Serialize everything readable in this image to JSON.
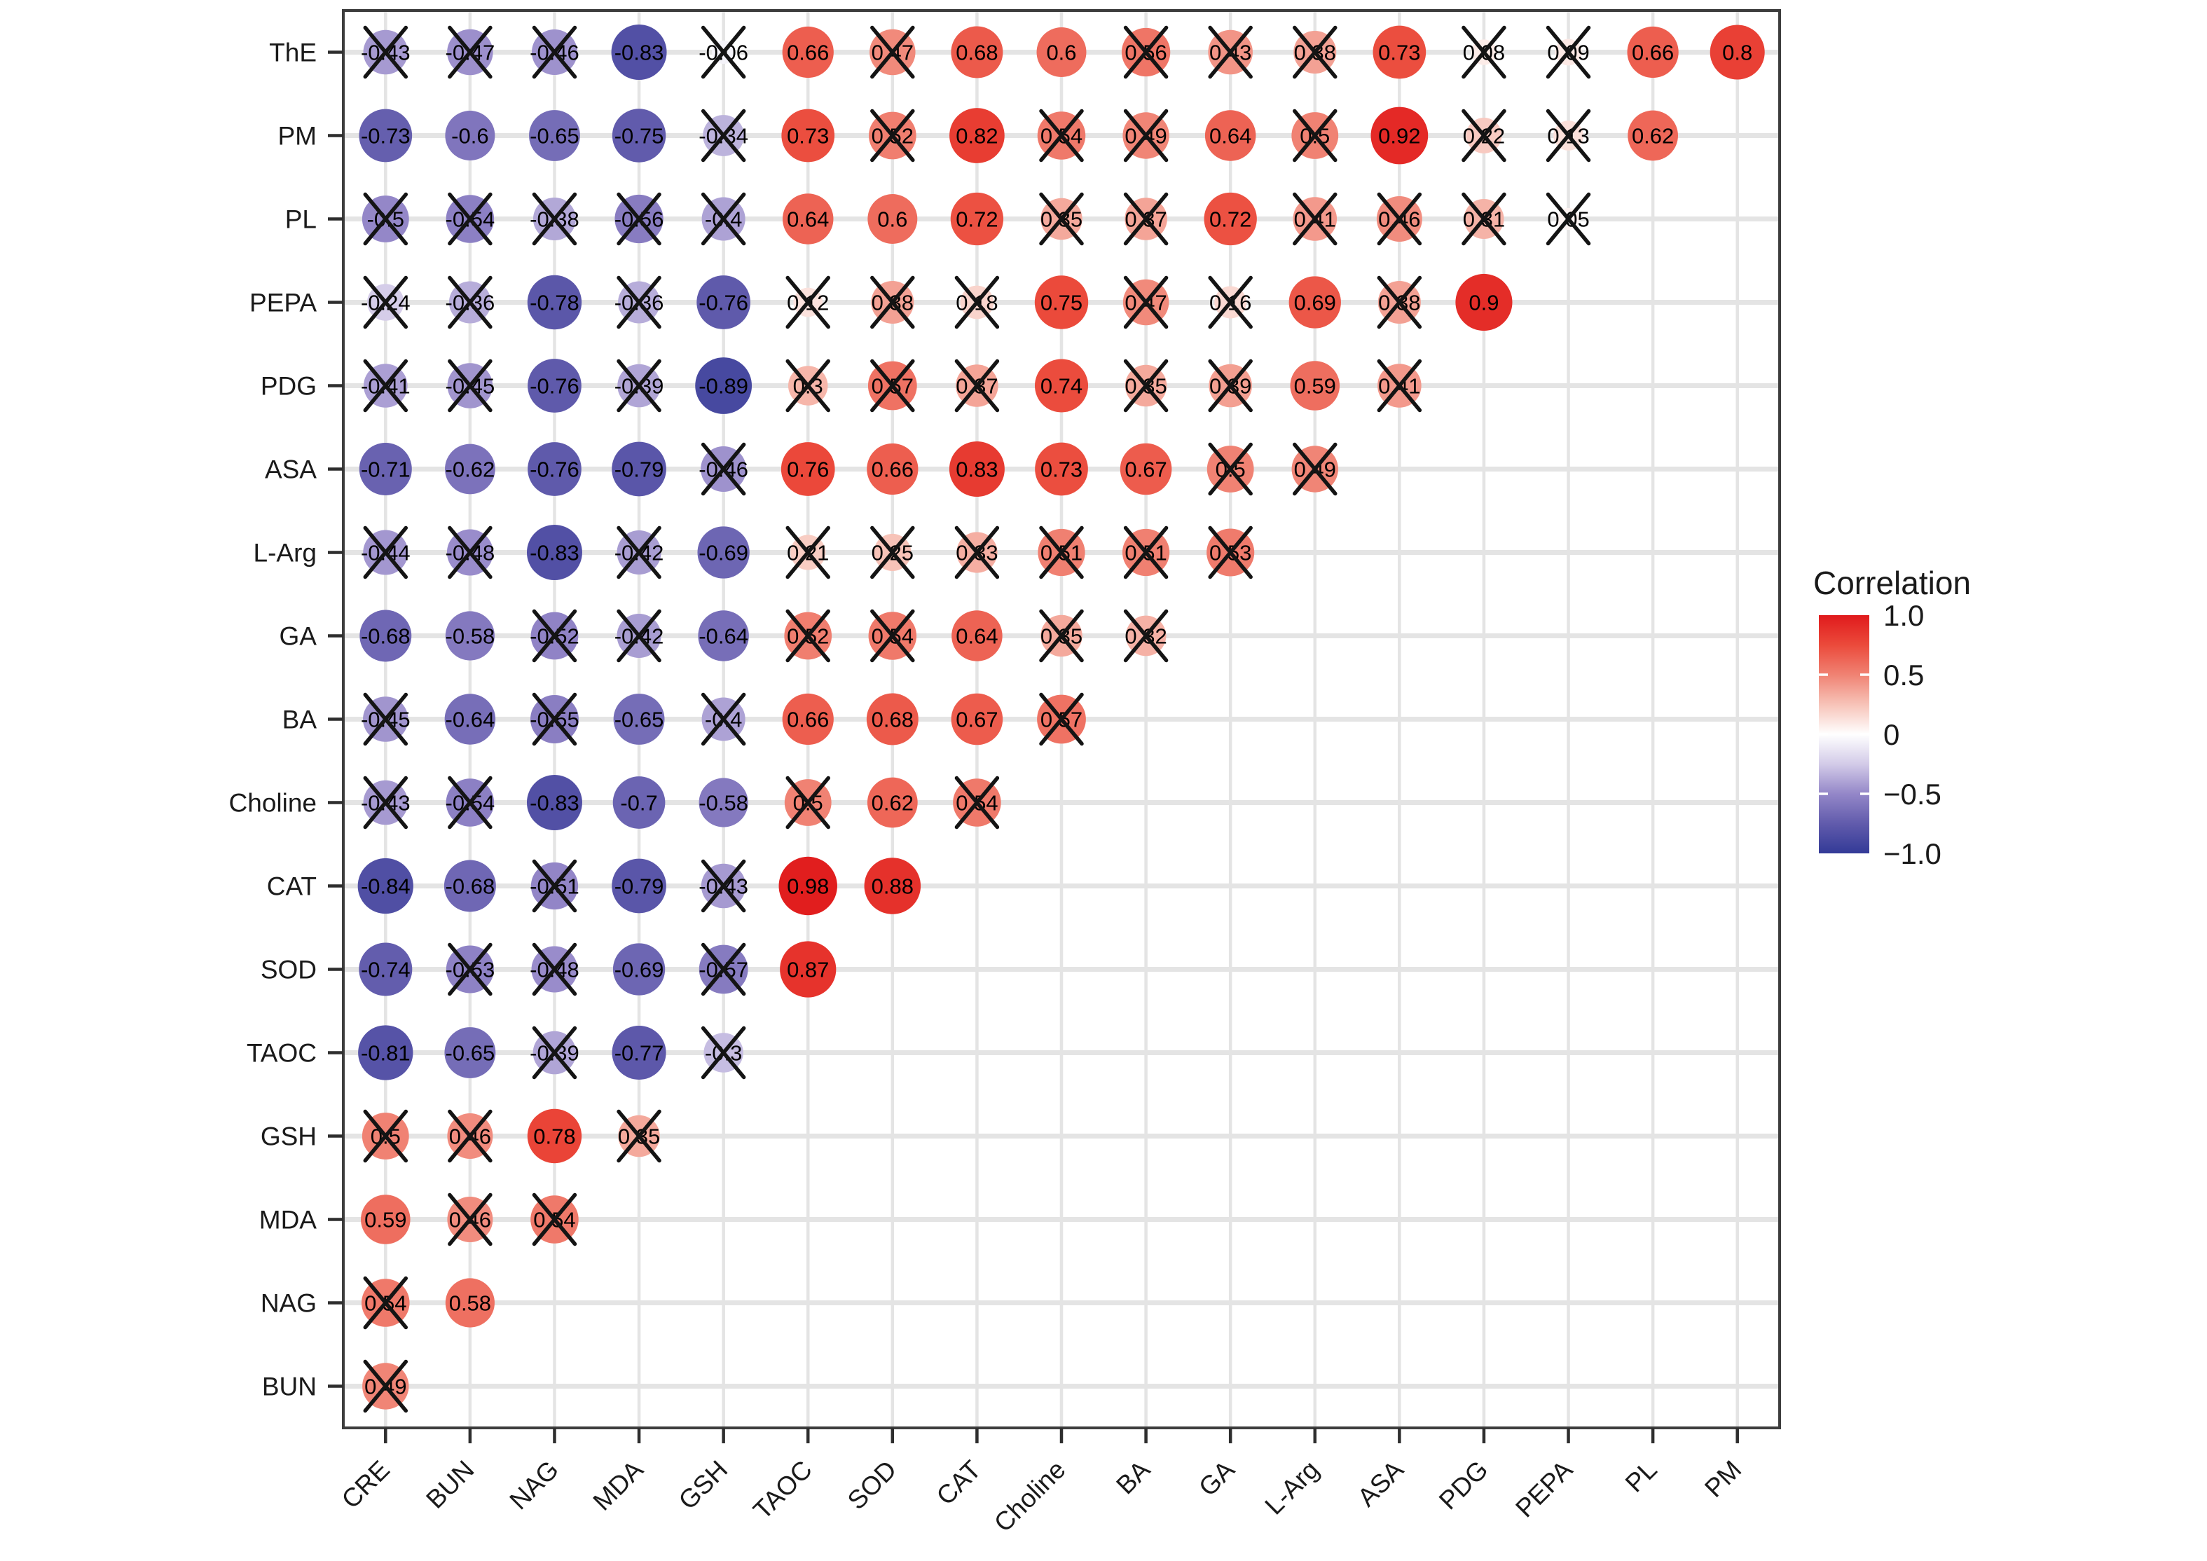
{
  "chart_data": {
    "type": "correlation-matrix-bubble",
    "description": "Lower-triangular correlation matrix; circle size and color encode correlation, black crosses mark non-significant values",
    "x_labels": [
      "CRE",
      "BUN",
      "NAG",
      "MDA",
      "GSH",
      "TAOC",
      "SOD",
      "CAT",
      "Choline",
      "BA",
      "GA",
      "L-Arg",
      "ASA",
      "PDG",
      "PEPA",
      "PL",
      "PM"
    ],
    "y_labels": [
      "ThE",
      "PM",
      "PL",
      "PEPA",
      "PDG",
      "ASA",
      "L-Arg",
      "GA",
      "BA",
      "Choline",
      "CAT",
      "SOD",
      "TAOC",
      "GSH",
      "MDA",
      "NAG",
      "BUN"
    ],
    "cells": [
      {
        "row": "ThE",
        "values": [
          -0.43,
          -0.47,
          -0.46,
          -0.83,
          -0.06,
          0.66,
          0.47,
          0.68,
          0.6,
          0.56,
          0.43,
          0.38,
          0.73,
          0.08,
          0.09,
          0.66,
          0.8
        ],
        "insignificant": [
          1,
          1,
          1,
          0,
          1,
          0,
          1,
          0,
          0,
          1,
          1,
          1,
          0,
          1,
          1,
          0,
          0
        ]
      },
      {
        "row": "PM",
        "values": [
          -0.73,
          -0.6,
          -0.65,
          -0.75,
          -0.34,
          0.73,
          0.52,
          0.82,
          0.54,
          0.49,
          0.64,
          0.5,
          0.92,
          0.22,
          0.13,
          0.62
        ],
        "insignificant": [
          0,
          0,
          0,
          0,
          1,
          0,
          1,
          0,
          1,
          1,
          0,
          1,
          0,
          1,
          1,
          0
        ]
      },
      {
        "row": "PL",
        "values": [
          -0.5,
          -0.54,
          -0.38,
          -0.56,
          -0.4,
          0.64,
          0.6,
          0.72,
          0.35,
          0.37,
          0.72,
          0.41,
          0.46,
          0.31,
          0.05
        ],
        "insignificant": [
          1,
          1,
          1,
          1,
          1,
          0,
          0,
          0,
          1,
          1,
          0,
          1,
          1,
          1,
          1
        ]
      },
      {
        "row": "PEPA",
        "values": [
          -0.24,
          -0.36,
          -0.78,
          -0.36,
          -0.76,
          0.12,
          0.38,
          0.18,
          0.75,
          0.47,
          0.16,
          0.69,
          0.38,
          0.9
        ],
        "insignificant": [
          1,
          1,
          0,
          1,
          0,
          1,
          1,
          1,
          0,
          1,
          1,
          0,
          1,
          0
        ]
      },
      {
        "row": "PDG",
        "values": [
          -0.41,
          -0.45,
          -0.76,
          -0.39,
          -0.89,
          0.3,
          0.57,
          0.37,
          0.74,
          0.35,
          0.39,
          0.59,
          0.41
        ],
        "insignificant": [
          1,
          1,
          0,
          1,
          0,
          1,
          1,
          1,
          0,
          1,
          1,
          0,
          1
        ]
      },
      {
        "row": "ASA",
        "values": [
          -0.71,
          -0.62,
          -0.76,
          -0.79,
          -0.46,
          0.76,
          0.66,
          0.83,
          0.73,
          0.67,
          0.5,
          0.49
        ],
        "insignificant": [
          0,
          0,
          0,
          0,
          1,
          0,
          0,
          0,
          0,
          0,
          1,
          1
        ]
      },
      {
        "row": "L-Arg",
        "values": [
          -0.44,
          -0.48,
          -0.83,
          -0.42,
          -0.69,
          0.21,
          0.25,
          0.33,
          0.51,
          0.51,
          0.53
        ],
        "insignificant": [
          1,
          1,
          0,
          1,
          0,
          1,
          1,
          1,
          1,
          1,
          1
        ]
      },
      {
        "row": "GA",
        "values": [
          -0.68,
          -0.58,
          -0.52,
          -0.42,
          -0.64,
          0.52,
          0.54,
          0.64,
          0.35,
          0.32
        ],
        "insignificant": [
          0,
          0,
          1,
          1,
          0,
          1,
          1,
          0,
          1,
          1
        ]
      },
      {
        "row": "BA",
        "values": [
          -0.45,
          -0.64,
          -0.55,
          -0.65,
          -0.4,
          0.66,
          0.68,
          0.67,
          0.57
        ],
        "insignificant": [
          1,
          0,
          1,
          0,
          1,
          0,
          0,
          0,
          1
        ]
      },
      {
        "row": "Choline",
        "values": [
          -0.43,
          -0.54,
          -0.83,
          -0.7,
          -0.58,
          0.5,
          0.62,
          0.54
        ],
        "insignificant": [
          1,
          1,
          0,
          0,
          0,
          1,
          0,
          1
        ]
      },
      {
        "row": "CAT",
        "values": [
          -0.84,
          -0.68,
          -0.51,
          -0.79,
          -0.43,
          0.98,
          0.88
        ],
        "insignificant": [
          0,
          0,
          1,
          0,
          1,
          0,
          0
        ]
      },
      {
        "row": "SOD",
        "values": [
          -0.74,
          -0.53,
          -0.48,
          -0.69,
          -0.57,
          0.87
        ],
        "insignificant": [
          0,
          1,
          1,
          0,
          1,
          0
        ]
      },
      {
        "row": "TAOC",
        "values": [
          -0.81,
          -0.65,
          -0.39,
          -0.77,
          -0.3
        ],
        "insignificant": [
          0,
          0,
          1,
          0,
          1
        ]
      },
      {
        "row": "GSH",
        "values": [
          0.5,
          0.46,
          0.78,
          0.35
        ],
        "insignificant": [
          1,
          1,
          0,
          1
        ]
      },
      {
        "row": "MDA",
        "values": [
          0.59,
          0.46,
          0.54
        ],
        "insignificant": [
          0,
          1,
          1
        ]
      },
      {
        "row": "NAG",
        "values": [
          0.54,
          0.58
        ],
        "insignificant": [
          1,
          0
        ]
      },
      {
        "row": "BUN",
        "values": [
          0.49
        ],
        "insignificant": [
          1
        ]
      }
    ],
    "legend": {
      "title": "Correlation",
      "tick_labels": [
        "1.0",
        "0.5",
        "0",
        "−0.5",
        "−1.0"
      ],
      "tick_values": [
        1,
        0.5,
        0,
        -0.5,
        -1
      ]
    },
    "value_range": [
      -1,
      1
    ],
    "grid": true,
    "legend_position": "right",
    "colors": {
      "positive_end": "#E01A1C",
      "zero": "#FFFFFF",
      "negative_end": "#333A97",
      "grid_line": "#e4e4e4",
      "panel_border": "#3d3d3d",
      "axis_tick": "#2e2e2e",
      "cell_text": "#000000",
      "cross_mark": "#141414",
      "background": "#ffffff"
    }
  }
}
